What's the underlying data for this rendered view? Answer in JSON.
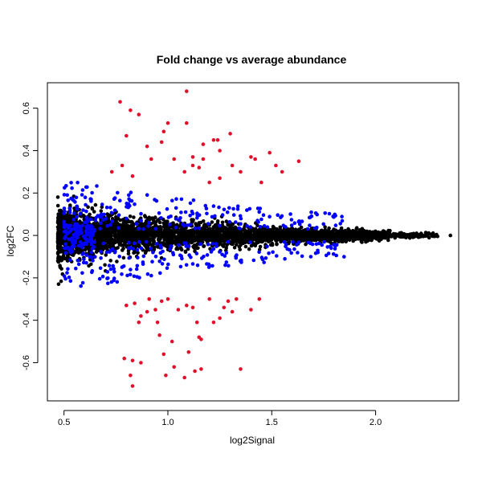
{
  "chart_data": {
    "type": "scatter",
    "title": "Fold change vs average abundance",
    "xlabel": "log2Signal",
    "ylabel": "log2FC",
    "xlim": [
      0.42,
      2.4
    ],
    "ylim": [
      -0.78,
      0.72
    ],
    "x_ticks": [
      0.5,
      1.0,
      1.5,
      2.0
    ],
    "x_tick_labels": [
      "0.5",
      "1.0",
      "1.5",
      "2.0"
    ],
    "y_ticks": [
      -0.6,
      -0.4,
      -0.2,
      0.0,
      0.2,
      0.4,
      0.6
    ],
    "y_tick_labels": [
      "-0.6",
      "-0.4",
      "-0.2",
      "0.0",
      "0.2",
      "0.4",
      "0.6"
    ],
    "grid": false,
    "colors": {
      "not_significant": "#000000",
      "moderate": "#0000ff",
      "high": "#e0102b"
    },
    "series": [
      {
        "color_key": "high",
        "points": [
          [
            0.77,
            0.63
          ],
          [
            0.82,
            0.59
          ],
          [
            0.86,
            0.57
          ],
          [
            0.8,
            0.47
          ],
          [
            0.9,
            0.42
          ],
          [
            0.92,
            0.36
          ],
          [
            0.97,
            0.44
          ],
          [
            0.98,
            0.49
          ],
          [
            1.0,
            0.53
          ],
          [
            1.09,
            0.68
          ],
          [
            1.09,
            0.53
          ],
          [
            1.03,
            0.36
          ],
          [
            1.12,
            0.37
          ],
          [
            1.12,
            0.33
          ],
          [
            1.15,
            0.32
          ],
          [
            1.17,
            0.43
          ],
          [
            1.22,
            0.45
          ],
          [
            1.24,
            0.45
          ],
          [
            1.25,
            0.4
          ],
          [
            1.3,
            0.48
          ],
          [
            1.31,
            0.33
          ],
          [
            1.35,
            0.3
          ],
          [
            1.4,
            0.37
          ],
          [
            1.42,
            0.36
          ],
          [
            1.49,
            0.39
          ],
          [
            1.52,
            0.33
          ],
          [
            1.55,
            0.3
          ],
          [
            1.63,
            0.35
          ],
          [
            0.78,
            0.33
          ],
          [
            0.73,
            0.3
          ],
          [
            0.83,
            0.28
          ],
          [
            1.08,
            0.3
          ],
          [
            1.17,
            0.36
          ],
          [
            1.2,
            0.25
          ],
          [
            1.45,
            0.25
          ],
          [
            1.25,
            0.27
          ],
          [
            0.8,
            -0.33
          ],
          [
            0.86,
            -0.41
          ],
          [
            0.87,
            -0.38
          ],
          [
            0.9,
            -0.36
          ],
          [
            0.94,
            -0.35
          ],
          [
            0.97,
            -0.31
          ],
          [
            1.0,
            -0.3
          ],
          [
            1.05,
            -0.35
          ],
          [
            1.09,
            -0.33
          ],
          [
            1.12,
            -0.34
          ],
          [
            1.14,
            -0.41
          ],
          [
            1.15,
            -0.48
          ],
          [
            1.16,
            -0.49
          ],
          [
            1.2,
            -0.3
          ],
          [
            1.22,
            -0.41
          ],
          [
            1.25,
            -0.39
          ],
          [
            1.27,
            -0.34
          ],
          [
            1.31,
            -0.36
          ],
          [
            1.33,
            -0.3
          ],
          [
            1.4,
            -0.35
          ],
          [
            1.44,
            -0.3
          ],
          [
            0.79,
            -0.58
          ],
          [
            0.83,
            -0.59
          ],
          [
            0.87,
            -0.6
          ],
          [
            0.82,
            -0.66
          ],
          [
            0.83,
            -0.71
          ],
          [
            0.98,
            -0.56
          ],
          [
            0.99,
            -0.66
          ],
          [
            1.03,
            -0.62
          ],
          [
            1.08,
            -0.67
          ],
          [
            1.13,
            -0.64
          ],
          [
            1.16,
            -0.63
          ],
          [
            1.35,
            -0.63
          ],
          [
            0.96,
            -0.47
          ],
          [
            1.02,
            -0.5
          ],
          [
            1.1,
            -0.55
          ],
          [
            0.84,
            -0.32
          ],
          [
            0.91,
            -0.3
          ],
          [
            1.29,
            -0.31
          ],
          [
            0.95,
            -0.41
          ]
        ]
      }
    ]
  }
}
